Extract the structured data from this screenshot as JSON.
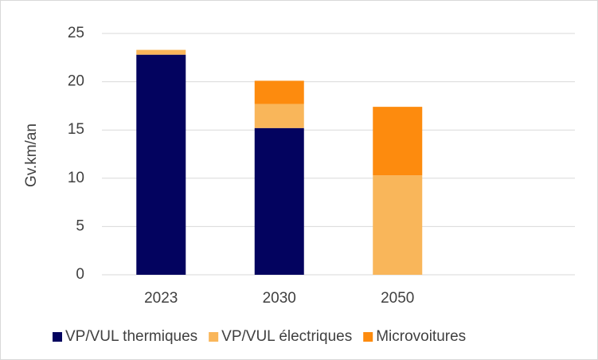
{
  "chart_data": {
    "type": "stacked_bar",
    "y_label": "Gv.km/an",
    "categories": [
      "2023",
      "2030",
      "2050",
      null
    ],
    "series": [
      {
        "name": "VP/VUL thermiques",
        "color": "#03035f",
        "values": [
          22.8,
          15.2,
          0,
          null
        ]
      },
      {
        "name": "VP/VUL électriques",
        "color": "#f9b65a",
        "values": [
          0.5,
          2.5,
          10.3,
          null
        ]
      },
      {
        "name": "Microvoitures",
        "color": "#fd8b0e",
        "values": [
          0,
          2.4,
          7.1,
          null
        ]
      }
    ],
    "ylim": [
      0,
      25
    ],
    "yticks": [
      0,
      5,
      10,
      15,
      20,
      25
    ],
    "grid": true,
    "legend": "bottom"
  }
}
